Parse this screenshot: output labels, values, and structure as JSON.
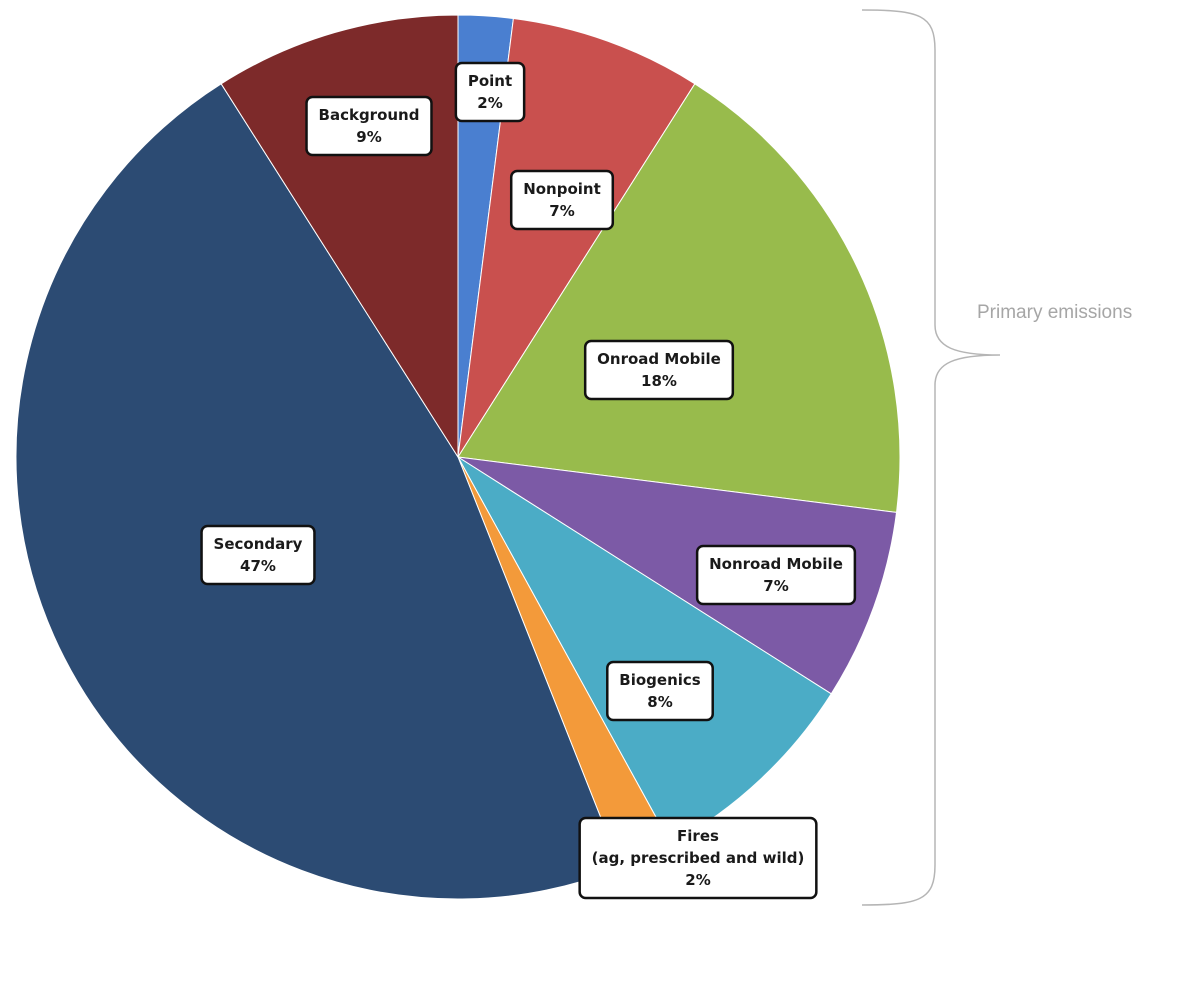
{
  "chart_data": {
    "type": "pie",
    "slices": [
      {
        "label": "Point",
        "value": 2,
        "display": "2%",
        "color": "#4a7fd0"
      },
      {
        "label": "Nonpoint",
        "value": 7,
        "display": "7%",
        "color": "#c9504e"
      },
      {
        "label": "Onroad Mobile",
        "value": 18,
        "display": "18%",
        "color": "#98bb4c"
      },
      {
        "label": "Nonroad Mobile",
        "value": 7,
        "display": "7%",
        "color": "#7c5aa6"
      },
      {
        "label": "Biogenics",
        "value": 8,
        "display": "8%",
        "color": "#4bacc6"
      },
      {
        "label": "Fires\n(ag, prescribed and wild)",
        "value": 2,
        "display": "2%",
        "color": "#f39a3a"
      },
      {
        "label": "Secondary",
        "value": 47,
        "display": "47%",
        "color": "#2c4b73"
      },
      {
        "label": "Background",
        "value": 9,
        "display": "9%",
        "color": "#7d2a2a"
      }
    ],
    "annotation": "Primary emissions"
  }
}
